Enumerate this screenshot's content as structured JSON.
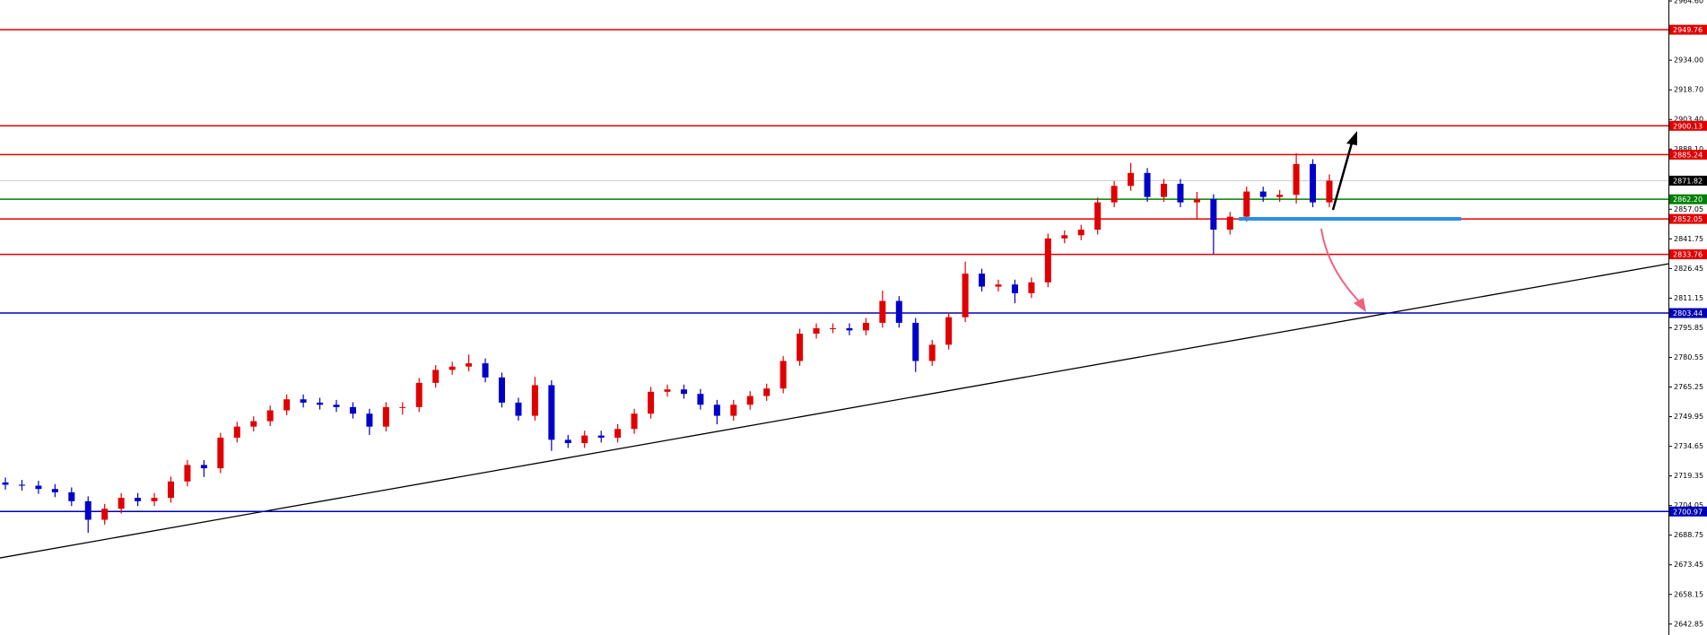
{
  "chart_data": {
    "type": "candlestick",
    "ylim": [
      2637.2,
      2965.1
    ],
    "yticks": [
      {
        "value": 2964.6,
        "label": "2964.60"
      },
      {
        "value": 2934.0,
        "label": "2934.00"
      },
      {
        "value": 2918.7,
        "label": "2918.70"
      },
      {
        "value": 2903.4,
        "label": "2903.40"
      },
      {
        "value": 2888.1,
        "label": "2888.10"
      },
      {
        "value": 2857.05,
        "label": "2857.05"
      },
      {
        "value": 2841.75,
        "label": "2841.75"
      },
      {
        "value": 2826.45,
        "label": "2826.45"
      },
      {
        "value": 2811.15,
        "label": "2811.15"
      },
      {
        "value": 2795.85,
        "label": "2795.85"
      },
      {
        "value": 2780.55,
        "label": "2780.55"
      },
      {
        "value": 2765.25,
        "label": "2765.25"
      },
      {
        "value": 2749.95,
        "label": "2749.95"
      },
      {
        "value": 2734.65,
        "label": "2734.65"
      },
      {
        "value": 2719.35,
        "label": "2719.35"
      },
      {
        "value": 2704.05,
        "label": "2704.05"
      },
      {
        "value": 2688.75,
        "label": "2688.75"
      },
      {
        "value": 2673.45,
        "label": "2673.45"
      },
      {
        "value": 2658.15,
        "label": "2658.15"
      },
      {
        "value": 2642.85,
        "label": "2642.85"
      }
    ],
    "up_color": "#e00000",
    "down_color": "#0000c8",
    "open": [
      2716.0,
      2714.8,
      2714.3,
      2712.6,
      2710.9,
      2706.3,
      2696.7,
      2702.4,
      2708.0,
      2706.3,
      2708.0,
      2716.5,
      2725.0,
      2723.3,
      2739.1,
      2744.8,
      2747.6,
      2753.2,
      2758.9,
      2757.2,
      2756.1,
      2754.9,
      2751.5,
      2744.8,
      2754.9,
      2754.9,
      2767.4,
      2774.1,
      2775.8,
      2777.5,
      2770.2,
      2757.2,
      2750.4,
      2766.2,
      2738.0,
      2736.3,
      2740.2,
      2739.1,
      2743.6,
      2751.5,
      2762.8,
      2764.0,
      2761.7,
      2756.1,
      2750.4,
      2756.1,
      2760.6,
      2764.5,
      2778.7,
      2792.8,
      2795.6,
      2795.6,
      2794.5,
      2798.4,
      2809.7,
      2798.4,
      2778.7,
      2787.1,
      2801.3,
      2823.8,
      2817.1,
      2818.2,
      2813.7,
      2819.3,
      2842.0,
      2843.6,
      2846.5,
      2860.6,
      2869.1,
      2875.8,
      2863.4,
      2870.2,
      2860.6,
      2862.3,
      2846.5,
      2853.2,
      2866.2,
      2863.4,
      2864.5,
      2880.4,
      2860.6
    ],
    "high": [
      2718.5,
      2717.3,
      2716.8,
      2715.1,
      2713.4,
      2708.8,
      2704.9,
      2710.5,
      2710.5,
      2710.5,
      2719.0,
      2727.5,
      2727.5,
      2741.6,
      2747.3,
      2750.1,
      2755.7,
      2761.4,
      2761.4,
      2759.7,
      2758.6,
      2757.4,
      2754.0,
      2757.4,
      2757.4,
      2769.9,
      2776.6,
      2778.3,
      2782.0,
      2780.0,
      2772.7,
      2759.7,
      2770.5,
      2768.7,
      2740.5,
      2742.7,
      2742.7,
      2746.1,
      2754.0,
      2765.3,
      2766.5,
      2766.5,
      2764.2,
      2758.6,
      2758.6,
      2763.1,
      2767.0,
      2781.2,
      2795.3,
      2798.1,
      2798.1,
      2798.1,
      2800.9,
      2815.0,
      2812.2,
      2800.9,
      2789.6,
      2803.8,
      2830.0,
      2826.3,
      2820.7,
      2820.7,
      2821.8,
      2844.5,
      2846.1,
      2849.0,
      2863.1,
      2871.6,
      2881.0,
      2878.3,
      2872.7,
      2872.7,
      2866.0,
      2864.8,
      2855.7,
      2868.7,
      2868.7,
      2867.0,
      2886.0,
      2882.9,
      2875.0
    ],
    "low": [
      2712.3,
      2711.8,
      2710.1,
      2708.4,
      2703.8,
      2690.0,
      2694.2,
      2699.9,
      2703.8,
      2703.8,
      2705.5,
      2714.0,
      2718.8,
      2720.8,
      2736.6,
      2742.3,
      2745.1,
      2750.7,
      2754.7,
      2753.6,
      2752.4,
      2749.0,
      2740.5,
      2742.3,
      2751.0,
      2752.4,
      2764.9,
      2771.6,
      2773.3,
      2767.7,
      2754.7,
      2747.9,
      2747.9,
      2732.3,
      2733.8,
      2733.8,
      2736.6,
      2736.6,
      2741.1,
      2749.0,
      2760.3,
      2759.2,
      2753.6,
      2746.0,
      2747.9,
      2753.6,
      2758.1,
      2762.0,
      2776.2,
      2790.3,
      2793.1,
      2792.0,
      2792.0,
      2795.9,
      2795.9,
      2773.0,
      2776.2,
      2784.6,
      2798.8,
      2814.6,
      2814.6,
      2808.5,
      2811.2,
      2816.8,
      2839.5,
      2841.1,
      2844.0,
      2858.1,
      2866.6,
      2860.9,
      2860.9,
      2858.1,
      2852.0,
      2834.0,
      2844.0,
      2850.7,
      2860.9,
      2860.9,
      2860.0,
      2858.1,
      2858.1
    ],
    "close": [
      2714.8,
      2714.3,
      2712.6,
      2710.9,
      2706.3,
      2696.7,
      2702.4,
      2708.0,
      2706.3,
      2708.0,
      2716.5,
      2725.0,
      2723.3,
      2739.1,
      2744.8,
      2747.6,
      2753.2,
      2758.9,
      2757.2,
      2756.1,
      2754.9,
      2751.5,
      2744.8,
      2754.9,
      2754.9,
      2767.4,
      2774.1,
      2775.8,
      2777.5,
      2770.2,
      2757.2,
      2750.4,
      2766.2,
      2738.0,
      2736.3,
      2740.2,
      2739.1,
      2743.6,
      2751.5,
      2762.8,
      2764.0,
      2761.7,
      2756.1,
      2750.4,
      2756.1,
      2760.6,
      2764.5,
      2778.7,
      2792.8,
      2795.6,
      2795.6,
      2794.5,
      2798.4,
      2809.7,
      2798.4,
      2778.7,
      2787.1,
      2801.3,
      2823.8,
      2817.1,
      2818.2,
      2813.7,
      2819.3,
      2842.0,
      2843.6,
      2846.5,
      2860.6,
      2869.1,
      2875.8,
      2863.4,
      2870.2,
      2860.6,
      2862.3,
      2846.5,
      2853.2,
      2866.2,
      2863.4,
      2864.5,
      2880.4,
      2860.6,
      2871.8
    ],
    "levels": [
      {
        "value": 2949.76,
        "color": "#e00000"
      },
      {
        "value": 2900.13,
        "color": "#e00000"
      },
      {
        "value": 2885.24,
        "color": "#e00000"
      },
      {
        "value": 2862.2,
        "label": "2862.20",
        "color": "#008000"
      },
      {
        "value": 2852.05,
        "color": "#e00000"
      },
      {
        "value": 2833.76,
        "color": "#e00000"
      },
      {
        "value": 2803.44,
        "color": "#0000b4"
      },
      {
        "value": 2700.97,
        "color": "#0000b4"
      }
    ],
    "current_price": {
      "value": 2871.82,
      "color": "#000000",
      "line_color": "#c8c8c8"
    },
    "trendline": {
      "values": [
        2677.0,
        2828.9
      ],
      "color": "#000000"
    }
  }
}
